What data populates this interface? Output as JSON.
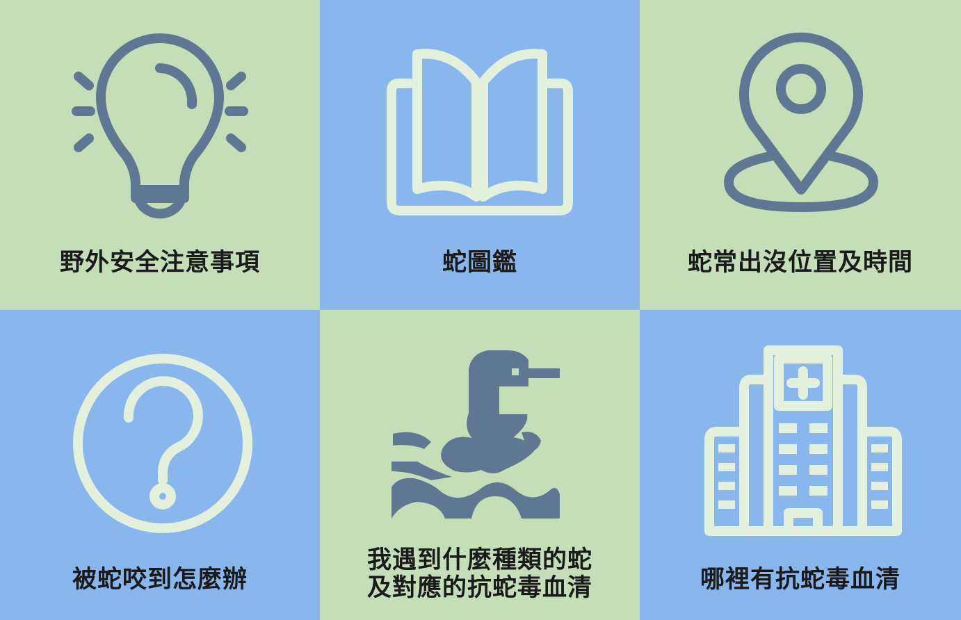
{
  "colors": {
    "green_tile": "#c4dfb8",
    "blue_tile": "#8ab6ee",
    "dark_icon": "#5e7894",
    "light_icon": "#e2f0dc",
    "label_text": "#1a1a1a"
  },
  "tiles": [
    {
      "label": "野外安全注意事項",
      "icon": "lightbulb-icon"
    },
    {
      "label": "蛇圖鑑",
      "icon": "open-book-icon"
    },
    {
      "label": "蛇常出沒位置及時間",
      "icon": "map-pin-icon"
    },
    {
      "label": "被蛇咬到怎麼辦",
      "icon": "question-circle-icon"
    },
    {
      "label_line1": "我遇到什麼種類的蛇",
      "label_line2": "及對應的抗蛇毒血清",
      "icon": "snake-icon"
    },
    {
      "label": "哪裡有抗蛇毒血清",
      "icon": "hospital-icon"
    }
  ]
}
